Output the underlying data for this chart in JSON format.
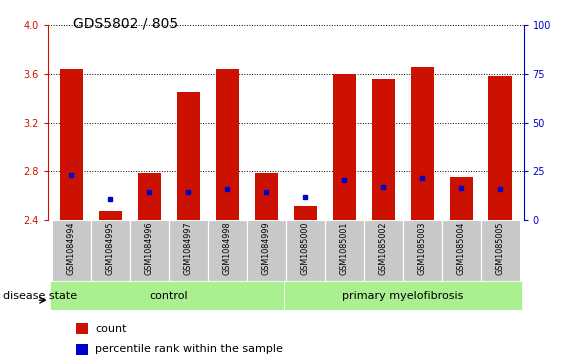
{
  "title": "GDS5802 / 805",
  "samples": [
    "GSM1084994",
    "GSM1084995",
    "GSM1084996",
    "GSM1084997",
    "GSM1084998",
    "GSM1084999",
    "GSM1085000",
    "GSM1085001",
    "GSM1085002",
    "GSM1085003",
    "GSM1085004",
    "GSM1085005"
  ],
  "counts": [
    3.64,
    2.47,
    2.78,
    3.45,
    3.64,
    2.78,
    2.51,
    3.6,
    3.56,
    3.66,
    2.75,
    3.58
  ],
  "percentile_y": [
    2.77,
    2.57,
    2.63,
    2.63,
    2.65,
    2.63,
    2.59,
    2.73,
    2.67,
    2.74,
    2.66,
    2.65
  ],
  "ylim": [
    2.4,
    4.0
  ],
  "yticks_left": [
    2.4,
    2.8,
    3.2,
    3.6,
    4.0
  ],
  "yticks_right": [
    0,
    25,
    50,
    75,
    100
  ],
  "bar_color": "#cc1100",
  "dot_color": "#0000cc",
  "control_label": "control",
  "disease_label": "primary myelofibrosis",
  "control_count": 6,
  "disease_count": 6,
  "group_bg_color": "#aaf090",
  "tick_label_bg": "#c8c8c8",
  "legend_count_label": "count",
  "legend_pct_label": "percentile rank within the sample",
  "disease_state_label": "disease state",
  "title_fontsize": 10,
  "tick_fontsize": 7,
  "label_fontsize": 8,
  "sample_fontsize": 5.8
}
